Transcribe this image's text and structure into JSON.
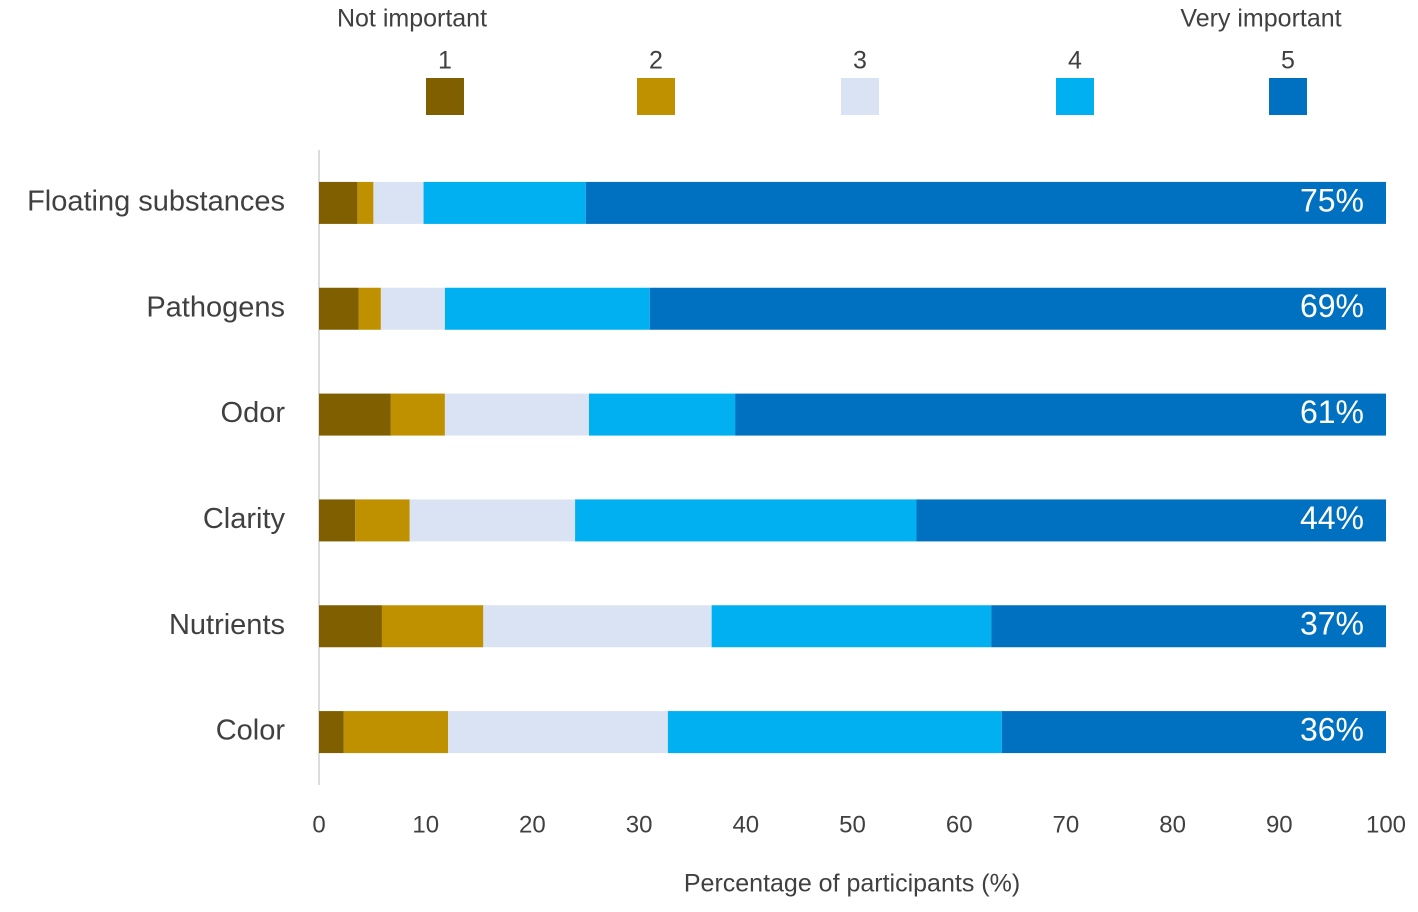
{
  "chart_data": {
    "type": "stacked_bar_horizontal",
    "legend_low_label": "Not important",
    "legend_high_label": "Very important",
    "x_axis_label": "Percentage of participants (%)",
    "categories": [
      "Floating substances",
      "Pathogens",
      "Odor",
      "Clarity",
      "Nutrients",
      "Color"
    ],
    "series": [
      {
        "name": "1",
        "color": "#7f5f00",
        "values": [
          3.6,
          3.7,
          6.7,
          3.4,
          5.9,
          2.3
        ]
      },
      {
        "name": "2",
        "color": "#bf9000",
        "values": [
          1.5,
          2.1,
          5.1,
          5.1,
          9.5,
          9.8
        ]
      },
      {
        "name": "3",
        "color": "#dae3f3",
        "values": [
          4.7,
          6.0,
          13.5,
          15.5,
          21.4,
          20.6
        ]
      },
      {
        "name": "4",
        "color": "#00b0f0",
        "values": [
          15.2,
          19.2,
          13.7,
          32,
          26.2,
          31.3
        ]
      },
      {
        "name": "5",
        "color": "#0070c0",
        "values": [
          75,
          69,
          61,
          44,
          37,
          36
        ],
        "value_labels": [
          "75%",
          "69%",
          "61%",
          "44%",
          "37%",
          "36%"
        ]
      }
    ],
    "xlim": [
      0,
      100
    ],
    "xticks": [
      0,
      10,
      20,
      30,
      40,
      50,
      60,
      70,
      80,
      90,
      100
    ],
    "grid": false
  }
}
